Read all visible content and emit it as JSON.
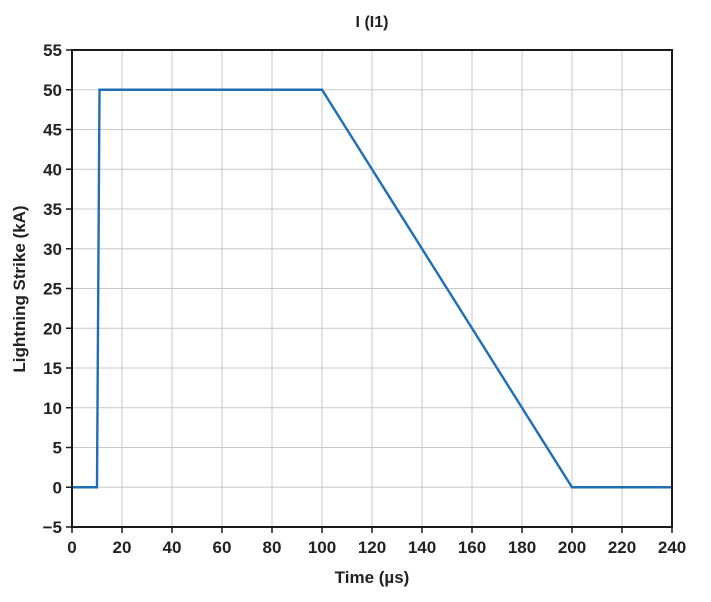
{
  "chart_data": {
    "type": "line",
    "title": "I (I1)",
    "xlabel": "Time (µs)",
    "ylabel": "Lightning Strike (kA)",
    "xlim": [
      0,
      240
    ],
    "ylim": [
      -5,
      55
    ],
    "x_ticks": [
      0,
      20,
      40,
      60,
      80,
      100,
      120,
      140,
      160,
      180,
      200,
      220,
      240
    ],
    "y_ticks": [
      -5,
      0,
      5,
      10,
      15,
      20,
      25,
      30,
      35,
      40,
      45,
      50,
      55
    ],
    "x_tick_labels": [
      "0",
      "20",
      "40",
      "60",
      "80",
      "100",
      "120",
      "140",
      "160",
      "180",
      "200",
      "220",
      "240"
    ],
    "y_tick_labels": [
      "−5",
      "0",
      "5",
      "10",
      "15",
      "20",
      "25",
      "30",
      "35",
      "40",
      "45",
      "50",
      "55"
    ],
    "grid": true,
    "series": [
      {
        "color": "#1f6fb4",
        "x": [
          0,
          10,
          11,
          100,
          200,
          240
        ],
        "y": [
          0,
          0,
          50,
          50,
          0,
          0
        ]
      }
    ]
  }
}
